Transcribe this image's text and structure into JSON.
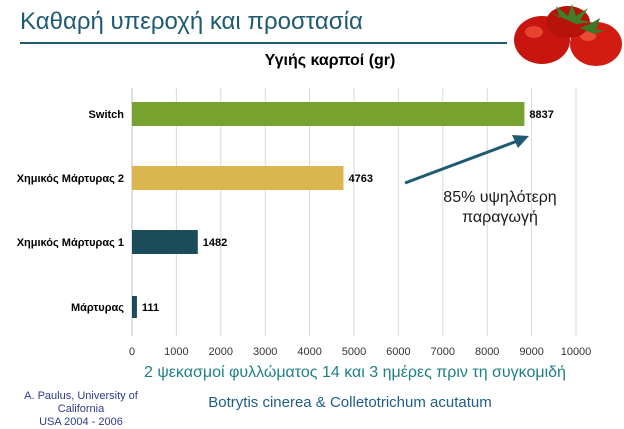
{
  "slide": {
    "title": "Καθαρή υπεροχή και προστασία",
    "annotation_line1": "85% υψηλότερη",
    "annotation_line2": "παραγωγή",
    "subtitle": "2 ψεκασμοί φυλλώματος 14 και 3 ημέρες πριν τη συγκομιδή",
    "credit_line1": "A. Paulus, University of California",
    "credit_line2": "USA 2004 - 2006",
    "pathogens": "Botrytis cinerea & Colletotrichum acutatum"
  },
  "colors": {
    "title": "#1f5a73",
    "bar_green": "#77a22f",
    "bar_yellow": "#dbb64e",
    "bar_dark": "#1a4c5a",
    "arrow": "#1f5a73",
    "grid": "#d9d9d9"
  },
  "chart_data": {
    "type": "bar",
    "orientation": "horizontal",
    "title": "Υγιής καρποί (gr)",
    "categories": [
      "Switch",
      "Χημικός Μάρτυρας 2",
      "Χημικός Μάρτυρας 1",
      "Μάρτυρας"
    ],
    "values": [
      8837,
      4763,
      1482,
      111
    ],
    "value_labels": [
      "8837",
      "4763",
      "1482",
      "111"
    ],
    "bar_colors": [
      "#77a22f",
      "#dbb64e",
      "#1a4c5a",
      "#1a4c5a"
    ],
    "xlim": [
      0,
      10000
    ],
    "xticks": [
      0,
      1000,
      2000,
      3000,
      4000,
      5000,
      6000,
      7000,
      8000,
      9000,
      10000
    ],
    "xtick_labels": [
      "0",
      "1000",
      "2000",
      "3000",
      "4000",
      "5000",
      "6000",
      "7000",
      "8000",
      "9000",
      "10000"
    ],
    "grid": true
  }
}
